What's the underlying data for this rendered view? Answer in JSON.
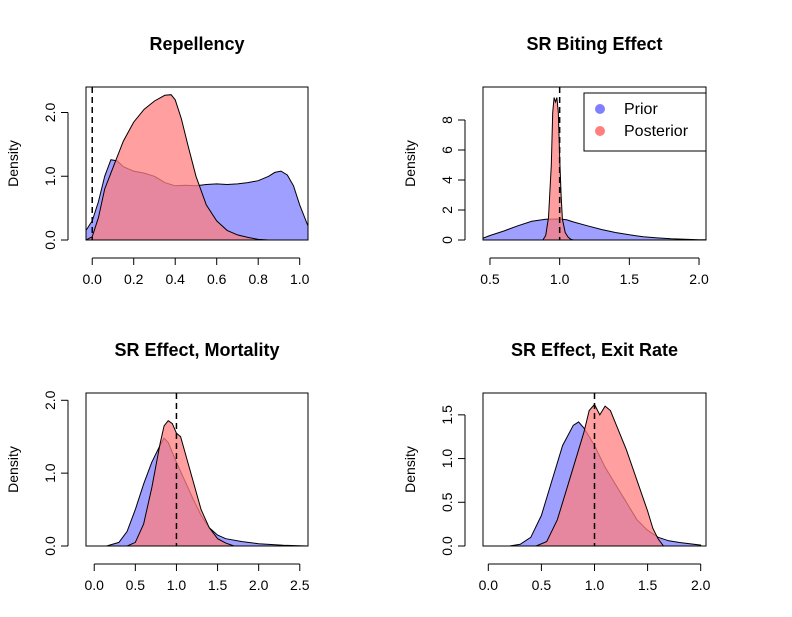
{
  "legend": {
    "prior_label": "Prior",
    "posterior_label": "Posterior",
    "prior_color": "#7f7fff",
    "posterior_color": "#ff7f7f"
  },
  "chart_data": [
    {
      "type": "area",
      "title": "Repellency",
      "xlabel": "",
      "ylabel": "Density",
      "xlim": [
        -0.03,
        1.04
      ],
      "ylim": [
        0,
        2.4
      ],
      "xticks": [
        "0.0",
        "0.2",
        "0.4",
        "0.6",
        "0.8",
        "1.0"
      ],
      "xtick_values": [
        0,
        0.2,
        0.4,
        0.6,
        0.8,
        1.0
      ],
      "yticks": [
        "0.0",
        "1.0",
        "2.0"
      ],
      "ytick_values": [
        0,
        1,
        2
      ],
      "vline": 0,
      "legend": false,
      "series": [
        {
          "role": "prior",
          "points": [
            [
              -0.03,
              0.15
            ],
            [
              0,
              0.3
            ],
            [
              0.03,
              0.6
            ],
            [
              0.06,
              1.0
            ],
            [
              0.09,
              1.26
            ],
            [
              0.12,
              1.24
            ],
            [
              0.15,
              1.15
            ],
            [
              0.2,
              1.08
            ],
            [
              0.25,
              1.05
            ],
            [
              0.3,
              1.0
            ],
            [
              0.35,
              0.9
            ],
            [
              0.4,
              0.85
            ],
            [
              0.45,
              0.86
            ],
            [
              0.5,
              0.85
            ],
            [
              0.55,
              0.87
            ],
            [
              0.6,
              0.88
            ],
            [
              0.65,
              0.87
            ],
            [
              0.7,
              0.88
            ],
            [
              0.75,
              0.9
            ],
            [
              0.8,
              0.93
            ],
            [
              0.85,
              1.0
            ],
            [
              0.88,
              1.06
            ],
            [
              0.91,
              1.08
            ],
            [
              0.94,
              1.02
            ],
            [
              0.97,
              0.85
            ],
            [
              1.0,
              0.55
            ],
            [
              1.04,
              0.22
            ]
          ]
        },
        {
          "role": "posterior",
          "points": [
            [
              -0.03,
              0
            ],
            [
              0,
              0.05
            ],
            [
              0.03,
              0.35
            ],
            [
              0.06,
              0.8
            ],
            [
              0.09,
              1.05
            ],
            [
              0.12,
              1.3
            ],
            [
              0.15,
              1.55
            ],
            [
              0.2,
              1.85
            ],
            [
              0.25,
              2.05
            ],
            [
              0.3,
              2.18
            ],
            [
              0.35,
              2.27
            ],
            [
              0.38,
              2.28
            ],
            [
              0.4,
              2.2
            ],
            [
              0.43,
              1.9
            ],
            [
              0.46,
              1.5
            ],
            [
              0.5,
              1.0
            ],
            [
              0.55,
              0.55
            ],
            [
              0.6,
              0.3
            ],
            [
              0.65,
              0.15
            ],
            [
              0.7,
              0.08
            ],
            [
              0.75,
              0.04
            ],
            [
              0.8,
              0.01
            ],
            [
              0.85,
              0
            ]
          ]
        }
      ]
    },
    {
      "type": "area",
      "title": "SR Biting Effect",
      "xlabel": "",
      "ylabel": "Density",
      "xlim": [
        0.45,
        2.05
      ],
      "ylim": [
        0,
        10.2
      ],
      "xticks": [
        "0.5",
        "1.0",
        "1.5",
        "2.0"
      ],
      "xtick_values": [
        0.5,
        1.0,
        1.5,
        2.0
      ],
      "yticks": [
        "0",
        "2",
        "4",
        "6",
        "8"
      ],
      "ytick_values": [
        0,
        2,
        4,
        6,
        8
      ],
      "vline": 1.0,
      "legend": true,
      "series": [
        {
          "role": "prior",
          "points": [
            [
              0.45,
              0.12
            ],
            [
              0.5,
              0.3
            ],
            [
              0.6,
              0.6
            ],
            [
              0.7,
              0.95
            ],
            [
              0.8,
              1.25
            ],
            [
              0.9,
              1.38
            ],
            [
              1.0,
              1.4
            ],
            [
              1.05,
              1.35
            ],
            [
              1.1,
              1.2
            ],
            [
              1.2,
              0.95
            ],
            [
              1.3,
              0.7
            ],
            [
              1.4,
              0.5
            ],
            [
              1.5,
              0.35
            ],
            [
              1.6,
              0.22
            ],
            [
              1.7,
              0.14
            ],
            [
              1.8,
              0.08
            ],
            [
              1.9,
              0.05
            ],
            [
              2.0,
              0.02
            ],
            [
              2.05,
              0.01
            ]
          ]
        },
        {
          "role": "posterior",
          "points": [
            [
              0.88,
              0
            ],
            [
              0.9,
              0.3
            ],
            [
              0.92,
              1.5
            ],
            [
              0.94,
              5.0
            ],
            [
              0.95,
              8.5
            ],
            [
              0.96,
              9.5
            ],
            [
              0.97,
              9.2
            ],
            [
              0.98,
              9.5
            ],
            [
              0.99,
              8.5
            ],
            [
              1.0,
              5.5
            ],
            [
              1.01,
              3.0
            ],
            [
              1.02,
              1.4
            ],
            [
              1.04,
              0.5
            ],
            [
              1.06,
              0.2
            ],
            [
              1.08,
              0.05
            ],
            [
              1.1,
              0
            ]
          ]
        }
      ]
    },
    {
      "type": "area",
      "title": "SR Effect, Mortality",
      "xlabel": "",
      "ylabel": "Density",
      "xlim": [
        -0.1,
        2.6
      ],
      "ylim": [
        0,
        2.1
      ],
      "xticks": [
        "0.0",
        "0.5",
        "1.0",
        "1.5",
        "2.0",
        "2.5"
      ],
      "xtick_values": [
        0,
        0.5,
        1.0,
        1.5,
        2.0,
        2.5
      ],
      "yticks": [
        "0.0",
        "1.0",
        "2.0"
      ],
      "ytick_values": [
        0,
        1,
        2
      ],
      "vline": 1.0,
      "legend": false,
      "series": [
        {
          "role": "prior",
          "points": [
            [
              0.15,
              0
            ],
            [
              0.3,
              0.05
            ],
            [
              0.4,
              0.2
            ],
            [
              0.5,
              0.5
            ],
            [
              0.6,
              0.85
            ],
            [
              0.7,
              1.15
            ],
            [
              0.8,
              1.38
            ],
            [
              0.85,
              1.48
            ],
            [
              0.9,
              1.42
            ],
            [
              1.0,
              1.15
            ],
            [
              1.1,
              0.9
            ],
            [
              1.2,
              0.65
            ],
            [
              1.3,
              0.42
            ],
            [
              1.4,
              0.25
            ],
            [
              1.5,
              0.15
            ],
            [
              1.6,
              0.1
            ],
            [
              1.8,
              0.06
            ],
            [
              2.0,
              0.03
            ],
            [
              2.3,
              0.01
            ],
            [
              2.6,
              0
            ]
          ]
        },
        {
          "role": "posterior",
          "points": [
            [
              0.4,
              0
            ],
            [
              0.5,
              0.05
            ],
            [
              0.6,
              0.3
            ],
            [
              0.7,
              0.8
            ],
            [
              0.8,
              1.4
            ],
            [
              0.85,
              1.65
            ],
            [
              0.9,
              1.72
            ],
            [
              0.95,
              1.68
            ],
            [
              1.0,
              1.55
            ],
            [
              1.05,
              1.5
            ],
            [
              1.1,
              1.3
            ],
            [
              1.2,
              0.9
            ],
            [
              1.3,
              0.5
            ],
            [
              1.4,
              0.25
            ],
            [
              1.5,
              0.1
            ],
            [
              1.6,
              0.04
            ],
            [
              1.7,
              0
            ]
          ]
        }
      ]
    },
    {
      "type": "area",
      "title": "SR Effect, Exit Rate",
      "xlabel": "",
      "ylabel": "Density",
      "xlim": [
        -0.05,
        2.05
      ],
      "ylim": [
        0,
        1.75
      ],
      "xticks": [
        "0.0",
        "0.5",
        "1.0",
        "1.5",
        "2.0"
      ],
      "xtick_values": [
        0,
        0.5,
        1.0,
        1.5,
        2.0
      ],
      "yticks": [
        "0.0",
        "0.5",
        "1.0",
        "1.5"
      ],
      "ytick_values": [
        0,
        0.5,
        1.0,
        1.5
      ],
      "vline": 1.0,
      "legend": false,
      "series": [
        {
          "role": "prior",
          "points": [
            [
              0.2,
              0
            ],
            [
              0.3,
              0.02
            ],
            [
              0.4,
              0.1
            ],
            [
              0.5,
              0.35
            ],
            [
              0.6,
              0.75
            ],
            [
              0.7,
              1.15
            ],
            [
              0.8,
              1.38
            ],
            [
              0.85,
              1.42
            ],
            [
              0.9,
              1.35
            ],
            [
              1.0,
              1.15
            ],
            [
              1.1,
              0.9
            ],
            [
              1.2,
              0.7
            ],
            [
              1.3,
              0.5
            ],
            [
              1.4,
              0.3
            ],
            [
              1.5,
              0.18
            ],
            [
              1.6,
              0.1
            ],
            [
              1.7,
              0.06
            ],
            [
              1.8,
              0.04
            ],
            [
              2.0,
              0.01
            ]
          ]
        },
        {
          "role": "posterior",
          "points": [
            [
              0.45,
              0
            ],
            [
              0.55,
              0.05
            ],
            [
              0.65,
              0.3
            ],
            [
              0.75,
              0.7
            ],
            [
              0.85,
              1.1
            ],
            [
              0.9,
              1.3
            ],
            [
              0.95,
              1.55
            ],
            [
              1.0,
              1.62
            ],
            [
              1.05,
              1.5
            ],
            [
              1.1,
              1.6
            ],
            [
              1.15,
              1.55
            ],
            [
              1.2,
              1.4
            ],
            [
              1.3,
              1.1
            ],
            [
              1.4,
              0.75
            ],
            [
              1.5,
              0.4
            ],
            [
              1.55,
              0.2
            ],
            [
              1.6,
              0.08
            ],
            [
              1.65,
              0
            ]
          ]
        }
      ]
    }
  ]
}
